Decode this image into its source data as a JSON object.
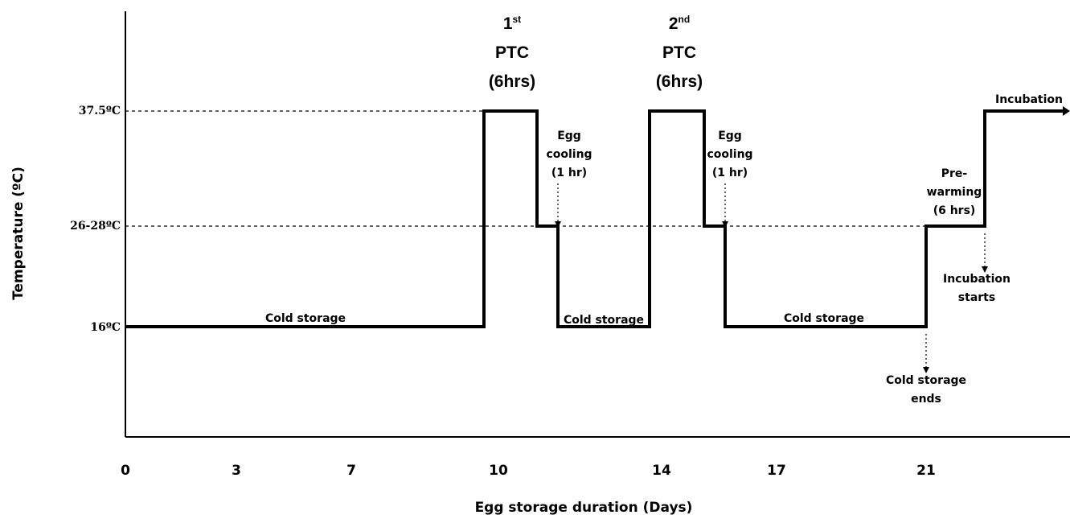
{
  "axes": {
    "x_label": "Egg storage duration (Days)",
    "y_label": "Temperature (ºC)",
    "x_ticks": [
      "0",
      "3",
      "7",
      "10",
      "14",
      "17",
      "21"
    ],
    "y_ticks": [
      "37.5ºC",
      "26-28ºC",
      "16ºC"
    ]
  },
  "annotations": {
    "ptc1": {
      "num": "1",
      "sup": "st",
      "line2": "PTC",
      "line3": "(6hrs)"
    },
    "ptc2": {
      "num": "2",
      "sup": "nd",
      "line2": "PTC",
      "line3": "(6hrs)"
    },
    "cold_storage_1": "Cold storage",
    "cold_storage_2": "Cold storage",
    "cold_storage_3": "Cold storage",
    "egg_cooling_1": {
      "line1": "Egg",
      "line2": "cooling",
      "line3": "(1 hr)"
    },
    "egg_cooling_2": {
      "line1": "Egg",
      "line2": "cooling",
      "line3": "(1 hr)"
    },
    "pre_warming": {
      "line1": "Pre-",
      "line2": "warming",
      "line3": "(6 hrs)"
    },
    "incubation": "Incubation",
    "incubation_starts": {
      "line1": "Incubation",
      "line2": "starts"
    },
    "cold_storage_ends": {
      "line1": "Cold storage",
      "line2": "ends"
    }
  },
  "colors": {
    "line": "#000000",
    "background": "#ffffff"
  }
}
